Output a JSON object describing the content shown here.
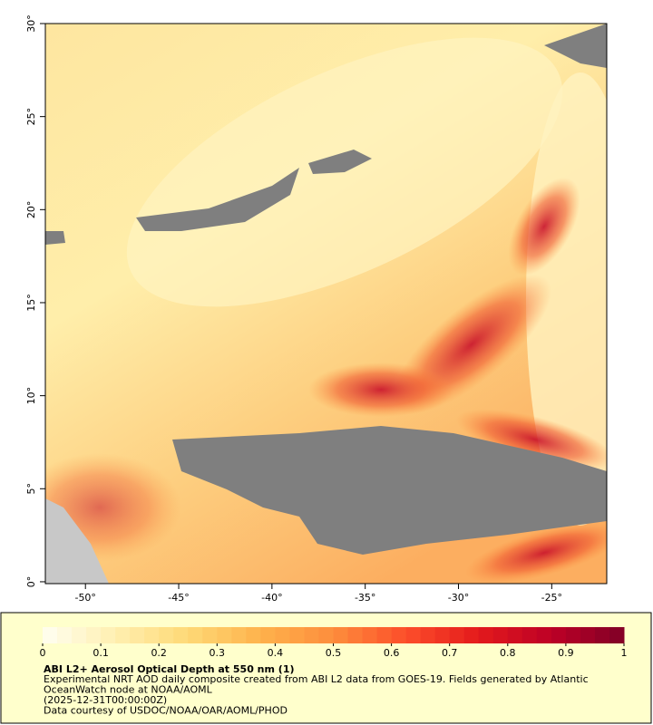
{
  "map": {
    "xlim": [
      -52.15,
      -22.05
    ],
    "ylim": [
      -0.1,
      30
    ],
    "xticks": [
      {
        "value": -50,
        "label": "-50°"
      },
      {
        "value": -45,
        "label": "-45°"
      },
      {
        "value": -40,
        "label": "-40°"
      },
      {
        "value": -35,
        "label": "-35°"
      },
      {
        "value": -30,
        "label": "-30°"
      },
      {
        "value": -25,
        "label": "-25°"
      }
    ],
    "yticks": [
      {
        "value": 0,
        "label": "0°"
      },
      {
        "value": 5,
        "label": "5°"
      },
      {
        "value": 10,
        "label": "10°"
      },
      {
        "value": 15,
        "label": "15°"
      },
      {
        "value": 20,
        "label": "20°"
      },
      {
        "value": 25,
        "label": "25°"
      },
      {
        "value": 30,
        "label": "30°"
      }
    ]
  },
  "colorbar": {
    "range": [
      0,
      1
    ],
    "ticks": [
      0,
      0.1,
      0.2,
      0.3,
      0.4,
      0.5,
      0.6,
      0.7,
      0.8,
      0.9,
      1
    ],
    "colors": [
      "#fffff2",
      "#ffefb0",
      "#fed976",
      "#feb24c",
      "#fd8d3c",
      "#fc4e2a",
      "#e31a1c",
      "#bd0026",
      "#800026"
    ]
  },
  "legend": {
    "title": "ABI L2+ Aerosol Optical Depth at 550 nm (1)",
    "lines": [
      "Experimental NRT AOD daily composite created from ABI L2 data from GOES-19. Fields generated by Atlantic",
      "OceanWatch node at NOAA/AOML",
      "(2025-12-31T00:00:00Z)",
      "Data courtesy of USDOC/NOAA/OAR/AOML/PHOD"
    ]
  }
}
